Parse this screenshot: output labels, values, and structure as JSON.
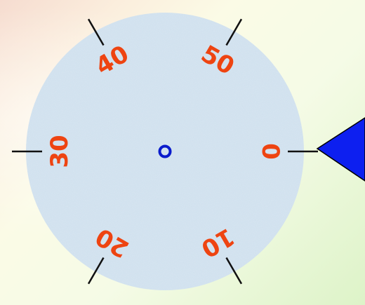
{
  "dial": {
    "labels": [
      {
        "text": "0",
        "angle": 0
      },
      {
        "text": "10",
        "angle": 60
      },
      {
        "text": "20",
        "angle": 120
      },
      {
        "text": "30",
        "angle": 180
      },
      {
        "text": "40",
        "angle": 240
      },
      {
        "text": "50",
        "angle": 300
      }
    ],
    "face_color": "#cfe0ee",
    "label_color": "#ee4411",
    "tick_color": "#111111",
    "center_ring_color": "#0a1ccc"
  },
  "pointer": {
    "color": "#0d1ff0",
    "direction": "left"
  }
}
